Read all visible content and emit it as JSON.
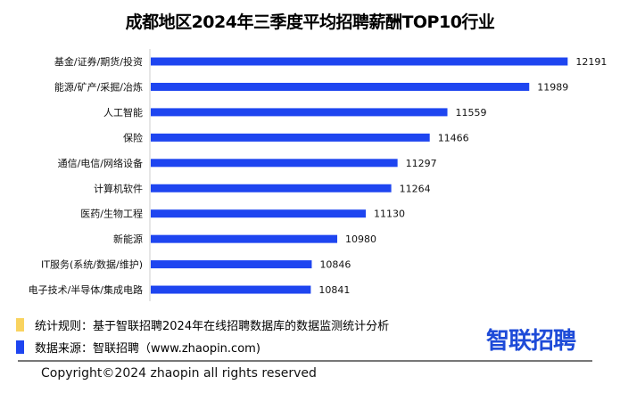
{
  "chart_data": {
    "type": "bar",
    "orientation": "horizontal",
    "title": "成都地区2024年三季度平均招聘薪酬TOP10行业",
    "categories": [
      "基金/证券/期货/投资",
      "能源/矿产/采掘/冶炼",
      "人工智能",
      "保险",
      "通信/电信/网络设备",
      "计算机软件",
      "医药/生物工程",
      "新能源",
      "IT服务(系统/数据/维护)",
      "电子技术/半导体/集成电路"
    ],
    "values": [
      12191,
      11989,
      11559,
      11466,
      11297,
      11264,
      11130,
      10980,
      10846,
      10841
    ],
    "xlim": [
      10000,
      12300
    ],
    "grid": false,
    "bar_color": "#1e45f0"
  },
  "footer": {
    "rule_text": "统计规则：基于智联招聘2024年在线招聘数据库的数据监测统计分析",
    "source_text": "数据来源：智联招聘（www.zhaopin.com)",
    "rule_color": "#f9d35f",
    "source_color": "#1e45f0",
    "logo": "智联招聘",
    "copyright": "Copyright©2024 zhaopin all rights reserved"
  }
}
